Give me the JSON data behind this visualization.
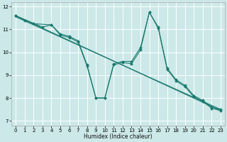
{
  "title": "",
  "xlabel": "Humidex (Indice chaleur)",
  "ylabel": "",
  "bg_color": "#cce8e8",
  "grid_color": "#ffffff",
  "line_color": "#1a7a6e",
  "xlim": [
    -0.5,
    23.5
  ],
  "ylim": [
    6.8,
    12.2
  ],
  "xticks": [
    0,
    1,
    2,
    3,
    4,
    5,
    6,
    7,
    8,
    9,
    10,
    11,
    12,
    13,
    14,
    15,
    16,
    17,
    18,
    19,
    20,
    21,
    22,
    23
  ],
  "yticks": [
    7,
    8,
    9,
    10,
    11,
    12
  ],
  "series": [
    {
      "x": [
        0,
        1,
        2,
        4,
        5,
        6,
        7,
        8,
        9,
        10,
        11,
        12,
        13,
        14,
        15,
        16,
        17,
        18,
        19,
        20,
        21,
        22,
        23
      ],
      "y": [
        11.6,
        11.4,
        11.25,
        11.2,
        10.8,
        10.7,
        10.5,
        9.45,
        8.0,
        8.0,
        9.5,
        9.6,
        9.6,
        10.2,
        11.75,
        11.1,
        9.3,
        8.8,
        8.55,
        8.1,
        7.9,
        7.6,
        7.5
      ]
    },
    {
      "x": [
        0,
        3,
        4,
        5,
        6,
        7,
        8,
        9,
        10,
        11,
        12,
        13,
        14,
        15,
        16,
        17,
        18,
        19,
        20,
        21,
        22,
        23
      ],
      "y": [
        11.6,
        11.1,
        11.2,
        10.75,
        10.65,
        10.45,
        9.4,
        8.0,
        8.0,
        9.45,
        9.55,
        9.5,
        10.1,
        11.75,
        11.05,
        9.25,
        8.75,
        8.5,
        8.05,
        7.85,
        7.55,
        7.45
      ]
    },
    {
      "x": [
        0,
        23
      ],
      "y": [
        11.6,
        7.45
      ]
    },
    {
      "x": [
        0,
        23
      ],
      "y": [
        11.55,
        7.5
      ]
    }
  ],
  "marker": "D",
  "markersize": 2.0,
  "linewidth": 0.8
}
